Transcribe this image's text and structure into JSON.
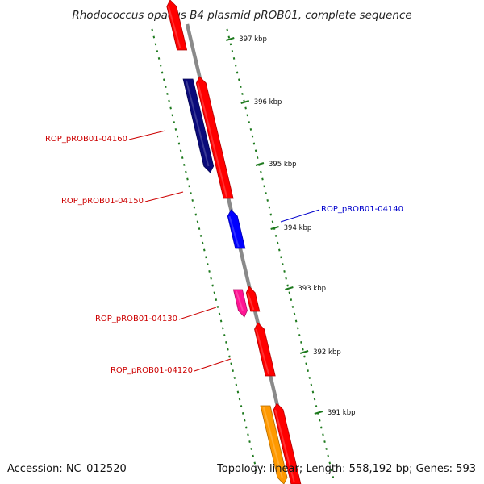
{
  "title": "Rhodococcus opacus B4 plasmid pROB01, complete sequence",
  "footer": {
    "accession": "Accession: NC_012520",
    "summary": "Topology: linear; Length: 558,192 bp; Genes: 593"
  },
  "colors": {
    "backbone": "#8a8a8a",
    "tick": "#1e7a1e",
    "label_red": "#cc0000",
    "label_blue": "#0000cc",
    "gene_red": "#ff0000",
    "gene_navy": "#0a0a7a",
    "gene_blue": "#0000ff",
    "gene_magenta": "#ff1493",
    "gene_orange": "#ff9900"
  },
  "ruler": {
    "unit": "kbp",
    "labels": [
      "397 kbp",
      "396 kbp",
      "395 kbp",
      "394 kbp",
      "393 kbp",
      "392 kbp",
      "391 kbp"
    ]
  },
  "genes": [
    {
      "name": "",
      "strand": "forward",
      "color": "#ff0000"
    },
    {
      "name": "ROP_pROB01-04160",
      "strand": "reverse",
      "color": "#0a0a7a"
    },
    {
      "name": "ROP_pROB01-04150",
      "strand": "forward",
      "color": "#ff0000"
    },
    {
      "name": "ROP_pROB01-04140",
      "strand": "forward",
      "color": "#0000ff"
    },
    {
      "name": "ROP_pROB01-04130",
      "strand": "reverse",
      "color": "#ff1493"
    },
    {
      "name": "",
      "strand": "forward",
      "color": "#ff0000"
    },
    {
      "name": "ROP_pROB01-04120",
      "strand": "forward",
      "color": "#ff0000"
    },
    {
      "name": "",
      "strand": "reverse",
      "color": "#ff9900"
    },
    {
      "name": "",
      "strand": "forward",
      "color": "#ff0000"
    }
  ],
  "labels": [
    {
      "text": "ROP_pROB01-04160",
      "color": "#cc0000"
    },
    {
      "text": "ROP_pROB01-04150",
      "color": "#cc0000"
    },
    {
      "text": "ROP_pROB01-04140",
      "color": "#0000cc"
    },
    {
      "text": "ROP_pROB01-04130",
      "color": "#cc0000"
    },
    {
      "text": "ROP_pROB01-04120",
      "color": "#cc0000"
    }
  ]
}
